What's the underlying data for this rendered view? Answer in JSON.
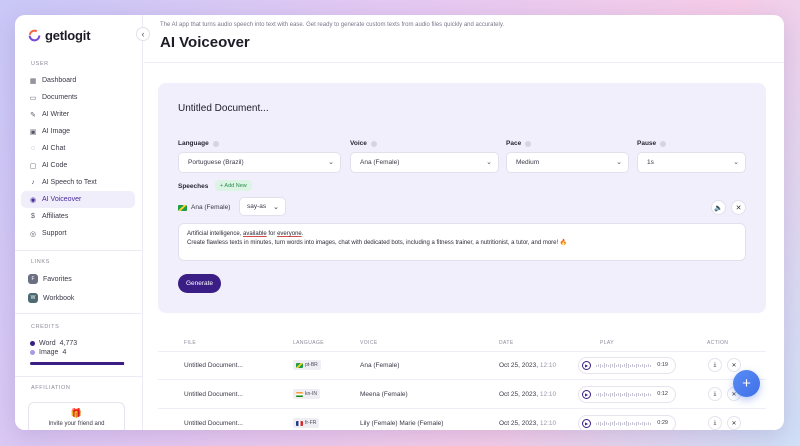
{
  "brand": {
    "name": "getlogit"
  },
  "sidebar": {
    "section_user": "USER",
    "items": [
      {
        "label": "Dashboard",
        "icon": "grid-icon"
      },
      {
        "label": "Documents",
        "icon": "folder-icon"
      },
      {
        "label": "AI Writer",
        "icon": "pen-icon"
      },
      {
        "label": "AI Image",
        "icon": "image-icon"
      },
      {
        "label": "AI Chat",
        "icon": "chat-icon"
      },
      {
        "label": "AI Code",
        "icon": "code-icon"
      },
      {
        "label": "AI Speech to Text",
        "icon": "mic-icon"
      },
      {
        "label": "AI Voiceover",
        "icon": "voice-icon"
      },
      {
        "label": "Affiliates",
        "icon": "dollar-icon"
      },
      {
        "label": "Support",
        "icon": "support-icon"
      }
    ],
    "section_links": "LINKS",
    "links": [
      {
        "label": "Favorites",
        "badge": "F"
      },
      {
        "label": "Workbook",
        "badge": "W"
      }
    ],
    "section_credits": "CREDITS",
    "credits": [
      {
        "label": "Word",
        "value": "4,773"
      },
      {
        "label": "Image",
        "value": "4"
      }
    ],
    "credit_fill_fraction": 0.99,
    "section_affiliation": "AFFILIATION",
    "invite_text": "Invite your friend and"
  },
  "header": {
    "subtitle": "The AI app that turns audio speech into text with ease. Get ready to generate custom texts from audio files quickly and accurately.",
    "title": "AI Voiceover"
  },
  "editor": {
    "doc_title": "Untitled Document...",
    "fields": {
      "language": {
        "label": "Language",
        "value": "Portuguese (Brazil)"
      },
      "voice": {
        "label": "Voice",
        "value": "Ana (Female)"
      },
      "pace": {
        "label": "Pace",
        "value": "Medium"
      },
      "pause": {
        "label": "Pause",
        "value": "1s"
      }
    },
    "speeches_label": "Speeches",
    "add_new": "+ Add New",
    "speech_voice": "Ana (Female)",
    "say_as": "say-as",
    "text_line1_a": "Artificial intelligence, ",
    "text_line1_b": "available",
    "text_line1_c": " for ",
    "text_line1_d": "everyone",
    "text_line1_e": ".",
    "text_line2": "Create flawless texts in minutes, turn words into images, chat with dedicated bots, including a fitness trainer, a nutritionist, a tutor, and more! 🔥",
    "generate": "Generate"
  },
  "table": {
    "headers": [
      "FILE",
      "LANGUAGE",
      "VOICE",
      "DATE",
      "PLAY",
      "ACTION"
    ],
    "rows": [
      {
        "file": "Untitled Document...",
        "lang": "pt-BR",
        "voice": "Ana (Female)",
        "date": "Oct 25, 2023,",
        "time": "12:10",
        "duration": "0:19"
      },
      {
        "file": "Untitled Document...",
        "lang": "kn-IN",
        "voice": "Meena (Female)",
        "date": "Oct 25, 2023,",
        "time": "12:10",
        "duration": "0:12"
      },
      {
        "file": "Untitled Document...",
        "lang": "fr-FR",
        "voice": "Lily (Female) Marie (Female)",
        "date": "Oct 25, 2023,",
        "time": "12:10",
        "duration": "0:29"
      }
    ]
  },
  "colors": {
    "accent": "#3a1e86",
    "fab": "#4a7cf0",
    "add_new_bg": "#dcf4e3"
  }
}
